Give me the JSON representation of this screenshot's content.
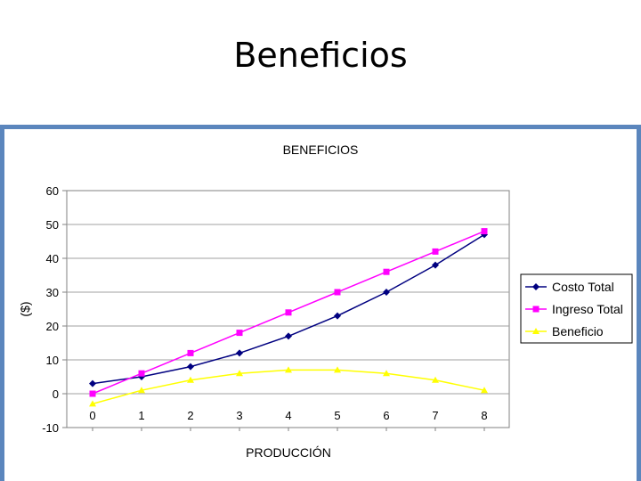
{
  "slide": {
    "title": "Beneficios"
  },
  "chart_data": {
    "type": "line",
    "title": "BENEFICIOS",
    "xlabel": "PRODUCCIÓN",
    "ylabel": "($)",
    "x": [
      0,
      1,
      2,
      3,
      4,
      5,
      6,
      7,
      8
    ],
    "ylim": [
      -10,
      60
    ],
    "yticks": [
      -10,
      0,
      10,
      20,
      30,
      40,
      50,
      60
    ],
    "grid": "horizontal",
    "legend_position": "right",
    "series": [
      {
        "name": "Costo Total",
        "color": "#000080",
        "marker": "diamond",
        "values": [
          3,
          5,
          8,
          12,
          17,
          23,
          30,
          38,
          47
        ]
      },
      {
        "name": "Ingreso Total",
        "color": "#ff00ff",
        "marker": "square",
        "values": [
          0,
          6,
          12,
          18,
          24,
          30,
          36,
          42,
          48
        ]
      },
      {
        "name": "Beneficio",
        "color": "#ffff00",
        "marker": "triangle",
        "values": [
          -3,
          1,
          4,
          6,
          7,
          7,
          6,
          4,
          1
        ]
      }
    ]
  }
}
